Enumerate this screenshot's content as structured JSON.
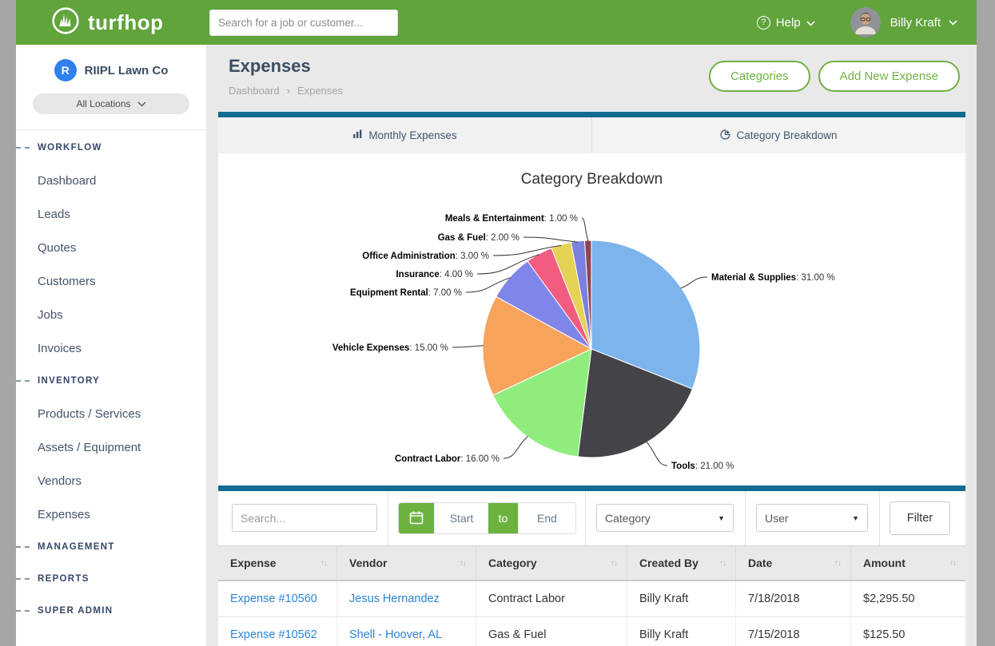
{
  "header": {
    "brand": "turfhop",
    "search_placeholder": "Search for a job or customer...",
    "help_label": "Help",
    "user_name": "Billy Kraft"
  },
  "sidebar": {
    "company_initial": "R",
    "company": "RIIPL Lawn Co",
    "location_selector": "All Locations",
    "sections": [
      {
        "label": "WORKFLOW",
        "items": [
          "Dashboard",
          "Leads",
          "Quotes",
          "Customers",
          "Jobs",
          "Invoices"
        ]
      },
      {
        "label": "INVENTORY",
        "items": [
          "Products / Services",
          "Assets / Equipment",
          "Vendors",
          "Expenses"
        ]
      },
      {
        "label": "MANAGEMENT",
        "items": []
      },
      {
        "label": "REPORTS",
        "items": []
      },
      {
        "label": "SUPER ADMIN",
        "items": []
      }
    ]
  },
  "page": {
    "title": "Expenses",
    "breadcrumb": {
      "home": "Dashboard",
      "separator": "›",
      "current": "Expenses"
    },
    "actions": {
      "categories": "Categories",
      "add_new": "Add New Expense"
    }
  },
  "tabs": [
    {
      "label": "Monthly Expenses",
      "icon": "bar-chart-icon"
    },
    {
      "label": "Category Breakdown",
      "icon": "pie-chart-icon"
    }
  ],
  "chart_data": {
    "type": "pie",
    "title": "Category Breakdown",
    "unit": "%",
    "direction": "clockwise",
    "start_angle_deg": 0,
    "legend": "none",
    "series": [
      {
        "name": "Material & Supplies",
        "value": 31.0,
        "color": "#7cb5ec"
      },
      {
        "name": "Tools",
        "value": 21.0,
        "color": "#434348"
      },
      {
        "name": "Contract Labor",
        "value": 16.0,
        "color": "#90ed7d"
      },
      {
        "name": "Vehicle Expenses",
        "value": 15.0,
        "color": "#f7a35c"
      },
      {
        "name": "Equipment Rental",
        "value": 7.0,
        "color": "#8085e9"
      },
      {
        "name": "Insurance",
        "value": 4.0,
        "color": "#f15c80"
      },
      {
        "name": "Office Administration",
        "value": 3.0,
        "color": "#e4d354"
      },
      {
        "name": "Gas & Fuel",
        "value": 2.0,
        "color": "#7b7fdd"
      },
      {
        "name": "Meals & Entertainment",
        "value": 1.0,
        "color": "#8d4653"
      }
    ]
  },
  "filters": {
    "search_placeholder": "Search...",
    "date_start_placeholder": "Start",
    "date_to": "to",
    "date_end_placeholder": "End",
    "category_selected": "Category",
    "user_selected": "User",
    "filter_button": "Filter"
  },
  "table": {
    "columns": [
      "Expense",
      "Vendor",
      "Category",
      "Created By",
      "Date",
      "Amount"
    ],
    "rows": [
      {
        "expense": "Expense #10560",
        "vendor": "Jesus Hernandez",
        "category": "Contract Labor",
        "created_by": "Billy Kraft",
        "date": "7/18/2018",
        "amount": "$2,295.50"
      },
      {
        "expense": "Expense #10562",
        "vendor": "Shell - Hoover, AL",
        "category": "Gas & Fuel",
        "created_by": "Billy Kraft",
        "date": "7/15/2018",
        "amount": "$125.50"
      }
    ]
  },
  "colors": {
    "header_green": "#60a43b",
    "accent_green": "#6fb244",
    "teal_bar": "#116b90",
    "link_blue": "#2a84d8"
  }
}
